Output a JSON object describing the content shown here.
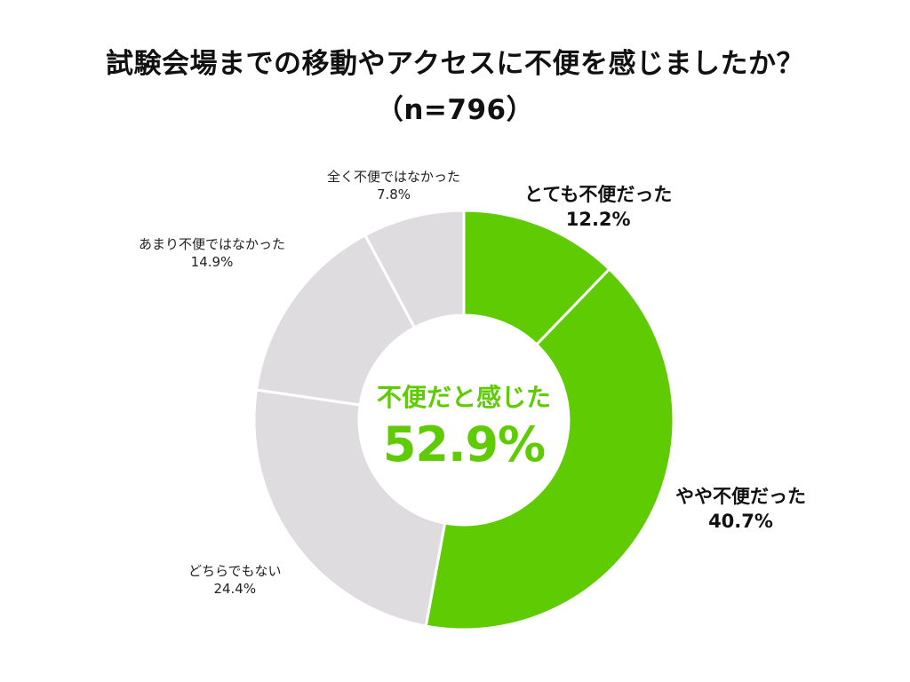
{
  "chart_data": {
    "type": "pie",
    "title_lines": [
      "試験会場までの移動やアクセスに不便を感じましたか？",
      "（n=796）"
    ],
    "slices": [
      {
        "label": "とても不便だった",
        "value": 12.2,
        "value_label": "12.2%",
        "color": "#5ecb03",
        "emphasis": true
      },
      {
        "label": "やや不便だった",
        "value": 40.7,
        "value_label": "40.7%",
        "color": "#5ecb03",
        "emphasis": true
      },
      {
        "label": "どちらでもない",
        "value": 24.4,
        "value_label": "24.4%",
        "color": "#dedcdf",
        "emphasis": false
      },
      {
        "label": "あまり不便ではなかった",
        "value": 14.9,
        "value_label": "14.9%",
        "color": "#dedcdf",
        "emphasis": false
      },
      {
        "label": "全く不便ではなかった",
        "value": 7.8,
        "value_label": "7.8%",
        "color": "#dedcdf",
        "emphasis": false
      }
    ],
    "center": {
      "caption": "不便だと感じた",
      "value": "52.9%",
      "color": "#5ecb03"
    },
    "start_angle_deg": 0,
    "direction": "clockwise",
    "legend": "none"
  }
}
